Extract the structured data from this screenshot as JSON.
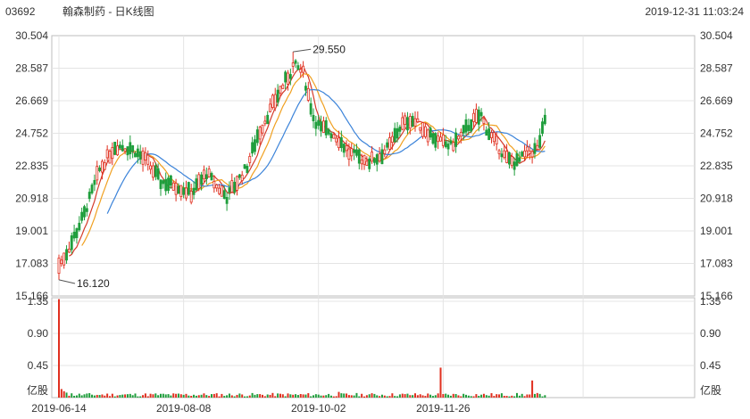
{
  "header": {
    "code": "03692",
    "title": "翰森制药 - 日K线图",
    "datetime": "2019-12-31 11:03:24"
  },
  "colors": {
    "up": "#e02f1f",
    "down": "#1f9e3c",
    "ma5": "#d43a2a",
    "ma10": "#f0a020",
    "ma20": "#3b83d9",
    "grid": "#e4e4e4",
    "frame": "#bdbdbd"
  },
  "chart_data": [
    {
      "type": "candlestick",
      "title": "",
      "y_ticks": [
        "30.504",
        "28.587",
        "26.669",
        "24.752",
        "22.835",
        "20.918",
        "19.001",
        "17.083",
        "15.166"
      ],
      "ylim": [
        15.166,
        30.504
      ],
      "x_ticks": [
        "2019-06-14",
        "2019-08-08",
        "2019-10-02",
        "2019-11-26"
      ],
      "annotations": {
        "high_label": "29.550",
        "low_label": "16.120"
      },
      "series_lines": [
        "MA5",
        "MA10",
        "MA20"
      ],
      "ohlc": [],
      "grid": true
    },
    {
      "type": "bar",
      "title": "",
      "unit_label": "亿股",
      "y_ticks": [
        "1.35",
        "0.90",
        "0.45"
      ],
      "ylim": [
        0,
        1.4
      ],
      "volumes": []
    }
  ]
}
